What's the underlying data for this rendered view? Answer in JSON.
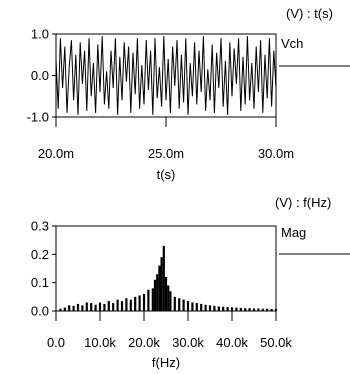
{
  "chart_data": [
    {
      "type": "line",
      "unit_label": "(V) : t(s)",
      "legend": "Vch",
      "xlabel": "t(s)",
      "xticks": [
        "20.0m",
        "25.0m",
        "30.0m"
      ],
      "xtick_values": [
        0.02,
        0.025,
        0.03
      ],
      "yticks": [
        "1.0",
        "0.0",
        "-1.0"
      ],
      "ytick_values": [
        1.0,
        0.0,
        -1.0
      ],
      "xlim": [
        0.02,
        0.03
      ],
      "ylim": [
        -1.0,
        1.0
      ],
      "signal": "noise-like waveform, amplitude approx ±0.95 V",
      "series": [
        {
          "name": "Vch",
          "x": [
            0.02,
            0.0201,
            0.0202,
            0.0203,
            0.0204,
            0.0205,
            0.0206,
            0.0207,
            0.0208,
            0.0209,
            0.021,
            0.0211,
            0.0212,
            0.0213,
            0.0214,
            0.0215,
            0.0216,
            0.0217,
            0.0218,
            0.0219,
            0.022,
            0.0221,
            0.0222,
            0.0223,
            0.0224,
            0.0225,
            0.0226,
            0.0227,
            0.0228,
            0.0229,
            0.023,
            0.0231,
            0.0232,
            0.0233,
            0.0234,
            0.0235,
            0.0236,
            0.0237,
            0.0238,
            0.0239,
            0.024,
            0.0241,
            0.0242,
            0.0243,
            0.0244,
            0.0245,
            0.0246,
            0.0247,
            0.0248,
            0.0249,
            0.025,
            0.0251,
            0.0252,
            0.0253,
            0.0254,
            0.0255,
            0.0256,
            0.0257,
            0.0258,
            0.0259,
            0.026,
            0.0261,
            0.0262,
            0.0263,
            0.0264,
            0.0265,
            0.0266,
            0.0267,
            0.0268,
            0.0269,
            0.027,
            0.0271,
            0.0272,
            0.0273,
            0.0274,
            0.0275,
            0.0276,
            0.0277,
            0.0278,
            0.0279,
            0.028,
            0.0281,
            0.0282,
            0.0283,
            0.0284,
            0.0285,
            0.0286,
            0.0287,
            0.0288,
            0.0289,
            0.029,
            0.0291,
            0.0292,
            0.0293,
            0.0294,
            0.0295,
            0.0296,
            0.0297,
            0.0298,
            0.0299,
            0.03
          ],
          "values": [
            0.4,
            -0.8,
            0.9,
            -0.3,
            0.7,
            -0.9,
            0.2,
            0.85,
            -0.6,
            0.5,
            -0.95,
            0.8,
            -0.2,
            0.6,
            -0.85,
            0.9,
            -0.5,
            0.3,
            -0.9,
            0.75,
            -0.4,
            0.95,
            -0.7,
            0.1,
            -0.8,
            0.6,
            -0.3,
            0.9,
            -0.95,
            0.45,
            -0.6,
            0.8,
            -0.15,
            0.7,
            -0.9,
            0.55,
            -0.45,
            0.9,
            -0.8,
            0.25,
            -0.7,
            0.85,
            -0.35,
            0.6,
            -0.95,
            0.9,
            -0.55,
            0.2,
            -0.75,
            0.95,
            -0.6,
            0.4,
            -0.9,
            0.7,
            -0.25,
            0.85,
            -0.8,
            0.5,
            -0.65,
            0.9,
            -0.95,
            0.3,
            -0.5,
            0.8,
            -0.7,
            0.6,
            -0.4,
            0.95,
            -0.85,
            0.15,
            -0.6,
            0.75,
            -0.9,
            0.55,
            -0.3,
            0.9,
            -0.75,
            0.35,
            -0.95,
            0.8,
            -0.5,
            0.65,
            -0.2,
            0.9,
            -0.85,
            0.45,
            -0.7,
            0.95,
            -0.6,
            0.3,
            -0.8,
            0.7,
            -0.4,
            0.85,
            -0.9,
            0.5,
            -0.55,
            0.9,
            -0.75,
            0.6,
            -0.3
          ]
        }
      ]
    },
    {
      "type": "bar",
      "unit_label": "(V) : f(Hz)",
      "legend": "Mag",
      "xlabel": "f(Hz)",
      "xticks": [
        "0.0",
        "10.0k",
        "20.0k",
        "30.0k",
        "40.0k",
        "50.0k"
      ],
      "xtick_values": [
        0,
        10000,
        20000,
        30000,
        40000,
        50000
      ],
      "yticks": [
        "0.3",
        "0.2",
        "0.1",
        "0.0"
      ],
      "ytick_values": [
        0.3,
        0.2,
        0.1,
        0.0
      ],
      "xlim": [
        0,
        50000
      ],
      "ylim": [
        0,
        0.3
      ],
      "series": [
        {
          "name": "Mag",
          "x": [
            1000,
            2000,
            3000,
            4000,
            5000,
            6000,
            7000,
            8000,
            9000,
            10000,
            11000,
            12000,
            13000,
            14000,
            15000,
            16000,
            17000,
            18000,
            19000,
            20000,
            21000,
            22000,
            22500,
            23000,
            23500,
            24000,
            24500,
            25000,
            25500,
            26000,
            27000,
            28000,
            29000,
            30000,
            31000,
            32000,
            33000,
            34000,
            35000,
            36000,
            37000,
            38000,
            39000,
            40000,
            41000,
            42000,
            43000,
            44000,
            45000,
            46000,
            47000,
            48000,
            49000,
            50000
          ],
          "values": [
            0.008,
            0.012,
            0.02,
            0.018,
            0.025,
            0.02,
            0.03,
            0.028,
            0.022,
            0.03,
            0.025,
            0.035,
            0.028,
            0.04,
            0.035,
            0.045,
            0.04,
            0.05,
            0.055,
            0.06,
            0.075,
            0.08,
            0.11,
            0.13,
            0.16,
            0.19,
            0.23,
            0.12,
            0.09,
            0.07,
            0.05,
            0.045,
            0.04,
            0.035,
            0.03,
            0.028,
            0.025,
            0.022,
            0.02,
            0.018,
            0.016,
            0.015,
            0.014,
            0.013,
            0.012,
            0.011,
            0.01,
            0.01,
            0.009,
            0.009,
            0.008,
            0.008,
            0.007,
            0.007
          ]
        }
      ]
    }
  ]
}
